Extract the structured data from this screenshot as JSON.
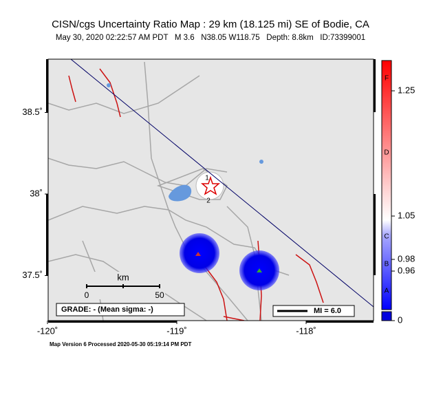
{
  "header": {
    "title": "CISN/cgs Uncertainty Ratio Map : 29 km (18.125 mi) SE of Bodie, CA",
    "subtitle": "May 30, 2020 02:22:57 AM PDT   M 3.6   N38.05 W118.75   Depth: 8.8km   ID:73399001"
  },
  "map": {
    "lon_ticks": [
      {
        "value": -120,
        "label": "-120˚"
      },
      {
        "value": -119,
        "label": "-119˚"
      },
      {
        "value": -118,
        "label": "-118˚"
      }
    ],
    "lat_ticks": [
      {
        "value": 38.5,
        "label": "38.5˚"
      },
      {
        "value": 38,
        "label": "38˚"
      },
      {
        "value": 37.5,
        "label": "37.5˚"
      }
    ],
    "station_labels": [
      "1",
      "2"
    ],
    "scale_bar": {
      "unit": "km",
      "labels": [
        "0",
        "50"
      ]
    },
    "grade": "GRADE: - (Mean sigma: -)",
    "mi_legend": "MI = 6.0"
  },
  "colorbar": {
    "ticks": [
      1.25,
      1.05,
      0.98,
      0.96,
      0
    ],
    "grades": [
      "F",
      "D",
      "C",
      "B",
      "A"
    ]
  },
  "footer": "Map Version 6 Processed 2020-05-30 05:19:14 PM PDT"
}
